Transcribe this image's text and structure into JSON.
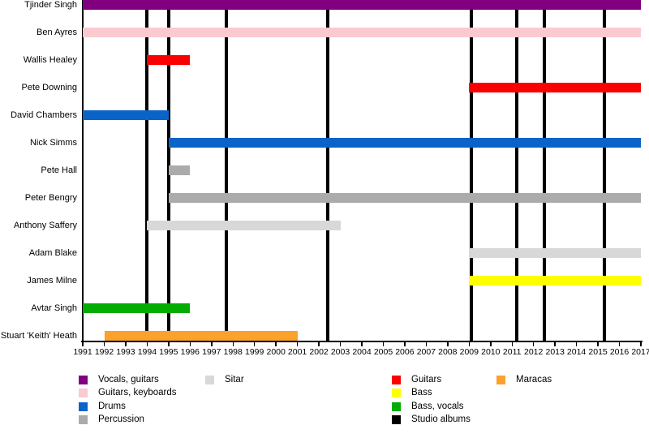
{
  "chart_data": {
    "type": "bar",
    "variant": "gantt-timeline",
    "title": "",
    "x_axis": {
      "min": 1991,
      "max": 2017,
      "tick_years": [
        1991,
        1992,
        1993,
        1994,
        1995,
        1996,
        1997,
        1998,
        1999,
        2000,
        2001,
        2002,
        2003,
        2004,
        2005,
        2006,
        2007,
        2008,
        2009,
        2010,
        2011,
        2012,
        2013,
        2014,
        2015,
        2016,
        2017
      ]
    },
    "members": [
      {
        "name": "Tjinder Singh",
        "role": "Vocals, guitars",
        "color": "#800080",
        "start": 1991,
        "end": 2017
      },
      {
        "name": "Ben Ayres",
        "role": "Guitars, keyboards",
        "color": "#FACAD0",
        "start": 1991,
        "end": 2017
      },
      {
        "name": "Wallis Healey",
        "role": "Guitars",
        "color": "#FB0000",
        "start": 1994,
        "end": 1996
      },
      {
        "name": "Pete Downing",
        "role": "Guitars",
        "color": "#FB0000",
        "start": 2009,
        "end": 2017
      },
      {
        "name": "David Chambers",
        "role": "Drums",
        "color": "#0A63C6",
        "start": 1991,
        "end": 1995
      },
      {
        "name": "Nick Simms",
        "role": "Drums",
        "color": "#0A63C6",
        "start": 1995,
        "end": 2017
      },
      {
        "name": "Pete Hall",
        "role": "Percussion",
        "color": "#ABABAB",
        "start": 1995,
        "end": 1996
      },
      {
        "name": "Peter Bengry",
        "role": "Percussion",
        "color": "#ABABAB",
        "start": 1995,
        "end": 2017
      },
      {
        "name": "Anthony Saffery",
        "role": "Sitar",
        "color": "#D8D8D8",
        "start": 1994,
        "end": 2003
      },
      {
        "name": "Adam Blake",
        "role": "Sitar",
        "color": "#D8D8D8",
        "start": 2009,
        "end": 2017
      },
      {
        "name": "James Milne",
        "role": "Bass",
        "color": "#FFFF00",
        "start": 2009,
        "end": 2017
      },
      {
        "name": "Avtar Singh",
        "role": "Bass, vocals",
        "color": "#00AD00",
        "start": 1991,
        "end": 1996
      },
      {
        "name": "Stuart 'Keith' Heath",
        "role": "Maracas",
        "color": "#FBA12D",
        "start": 1992,
        "end": 2001
      }
    ],
    "album_release_lines": {
      "label": "Studio albums",
      "color": "#000000",
      "years": [
        1994.0,
        1995.0,
        1997.7,
        2002.4,
        2009.1,
        2011.2,
        2012.5,
        2015.3
      ]
    },
    "legend": {
      "position": "bottom",
      "columns": [
        {
          "items": [
            {
              "label": "Vocals, guitars",
              "color": "#800080"
            },
            {
              "label": "Guitars, keyboards",
              "color": "#FACAD0"
            },
            {
              "label": "Drums",
              "color": "#0A63C6"
            },
            {
              "label": "Percussion",
              "color": "#ABABAB"
            }
          ]
        },
        {
          "items": [
            {
              "label": "Sitar",
              "color": "#D8D8D8"
            }
          ]
        },
        {
          "items": [
            {
              "label": "Guitars",
              "color": "#FB0000"
            },
            {
              "label": "Bass",
              "color": "#FFFF00"
            },
            {
              "label": "Bass, vocals",
              "color": "#00AD00"
            },
            {
              "label": "Studio albums",
              "color": "#000000"
            }
          ]
        },
        {
          "items": [
            {
              "label": "Maracas",
              "color": "#FBA12D"
            }
          ]
        }
      ]
    },
    "grid": false
  }
}
